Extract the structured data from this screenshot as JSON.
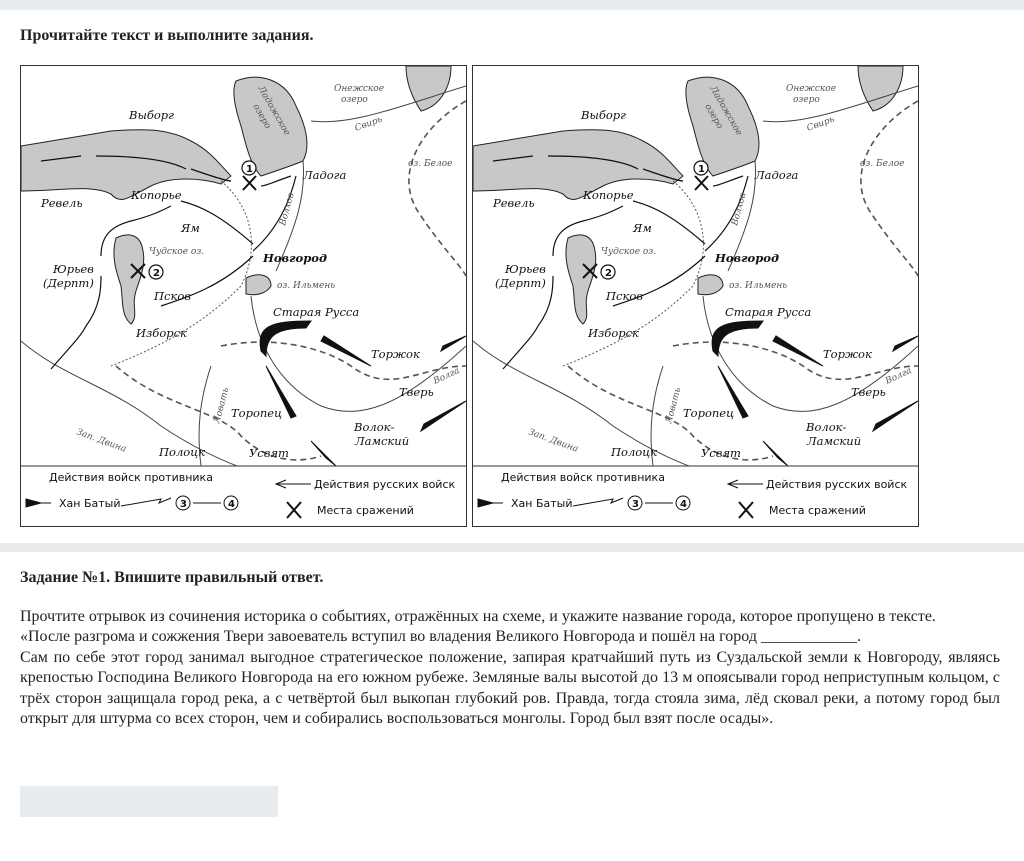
{
  "page": {
    "instruction": "Прочитайте текст и выполните задания."
  },
  "map": {
    "places": {
      "vyborg": "Выборг",
      "onega": "Онежское",
      "onega2": "озеро",
      "ladoga_lake": "Ладожское",
      "ladoga_lake2": "озеро",
      "svir": "Свирь",
      "beloe": "оз. Белое",
      "ladoga": "Ладога",
      "revel": "Ревель",
      "koporye": "Копорье",
      "yam": "Ям",
      "chudskoe": "Чудское оз.",
      "novgorod": "Новгород",
      "yuryev": "Юрьев",
      "derpt": "(Дерпт)",
      "pskov": "Псков",
      "ilmen": "оз. Ильмень",
      "staraya_russa": "Старая Русса",
      "izborsk": "Изборск",
      "torzhok": "Торжок",
      "tver": "Тверь",
      "volga": "Волга",
      "lovat": "Ловать",
      "toropets": "Торопец",
      "volok": "Волок-",
      "lamsky": "Ламский",
      "zap_dvina": "Зап. Двина",
      "polotsk": "Полоцк",
      "usvyat": "Усвят",
      "volkhov": "Волхов"
    },
    "markers": {
      "m1": "1",
      "m2": "2",
      "m3": "3",
      "m4": "4"
    },
    "legend": {
      "enemy": "Действия войск противника",
      "batu": "Хан Батый",
      "russian": "Действия русских войск",
      "battles": "Места сражений"
    }
  },
  "task": {
    "title": "Задание №1. Впишите правильный ответ.",
    "lines": [
      "Прочтите отрывок из сочинения историка о событиях, отражённых на схеме, и укажите название города, которое пропущено в тексте.",
      "«После разгрома и сожжения Твери завоеватель вступил во владения Великого Новгорода и пошёл на город ____________.",
      "Сам по себе этот город занимал выгодное стратегическое положение, запирая кратчайший путь из Суздальской земли к Новгороду, являясь крепостью Господина Великого Новгорода на его южном рубеже. Земляные валы высотой до 13 м опоясывали город неприступным кольцом, с трёх сторон защищала город река, а с четвёртой был выкопан глубокий ров. Правда, тогда стояла зима, лёд сковал реки, а потому город был открыт для штурма со всех сторон, чем и собирались воспользоваться монголы. Город был взят после осады»."
    ],
    "answer_value": ""
  }
}
